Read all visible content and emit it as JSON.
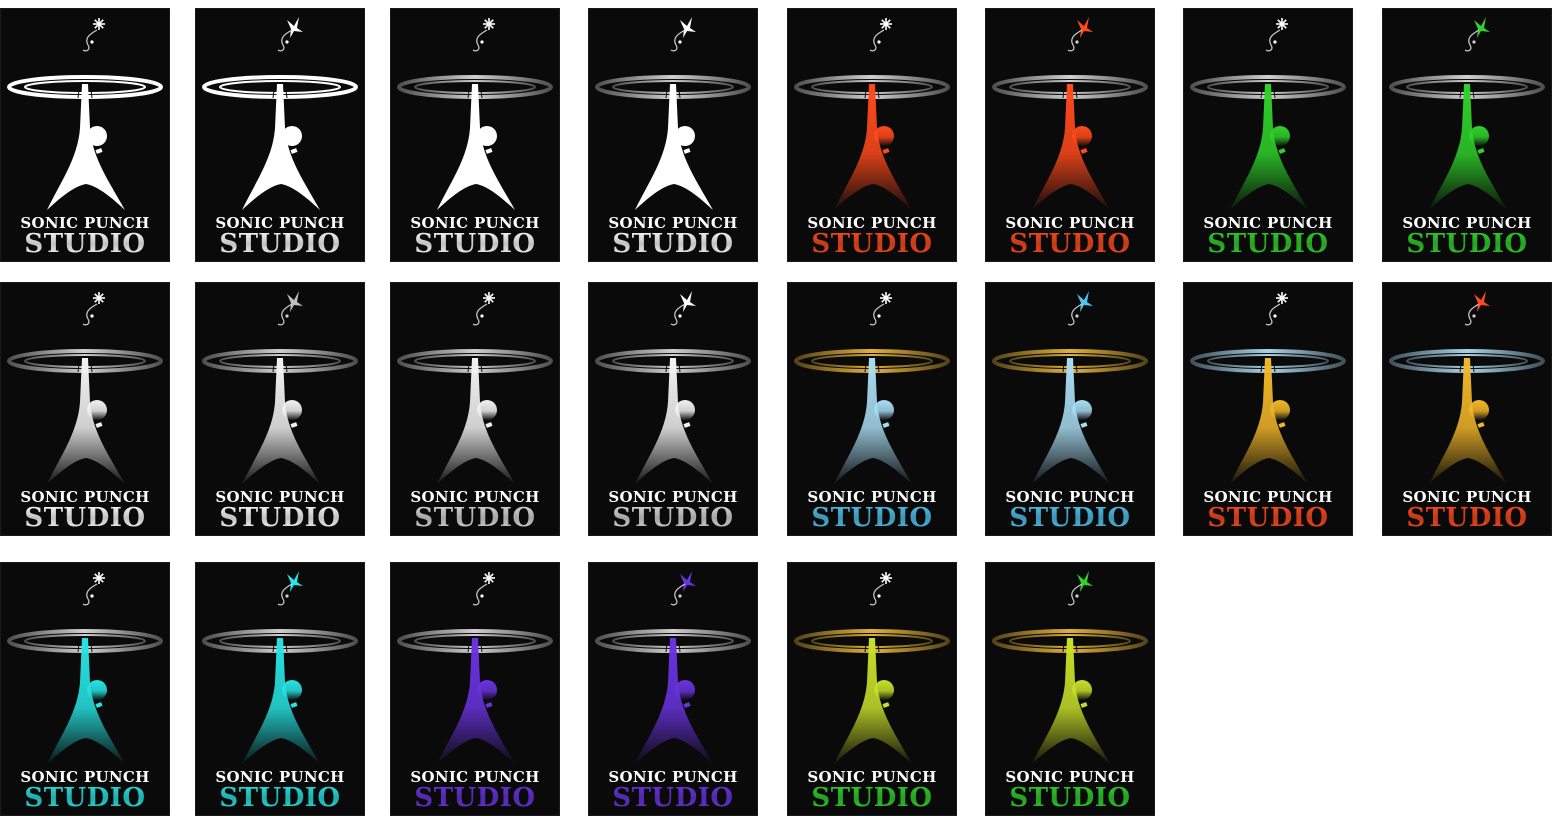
{
  "logo_text": {
    "line1": "SONIC PUNCH",
    "line2": "STUDIO"
  },
  "logos": [
    {
      "star": "#ffffff",
      "star_style": "spark",
      "ring": "#ffffff",
      "ring_solid": true,
      "figure": "#ffffff",
      "figure_grad": false,
      "text1": "#ffffff",
      "text2": "#ffffff"
    },
    {
      "star": "#ffffff",
      "star_style": "figure",
      "ring": "#ffffff",
      "ring_solid": true,
      "figure": "#ffffff",
      "figure_grad": false,
      "text1": "#ffffff",
      "text2": "#ffffff"
    },
    {
      "star": "#ffffff",
      "star_style": "spark",
      "ring": "#cfcfcf",
      "ring_solid": false,
      "figure": "#ffffff",
      "figure_grad": false,
      "text1": "#ffffff",
      "text2": "#ffffff"
    },
    {
      "star": "#ffffff",
      "star_style": "figure",
      "ring": "#cfcfcf",
      "ring_solid": false,
      "figure": "#ffffff",
      "figure_grad": false,
      "text1": "#ffffff",
      "text2": "#ffffff"
    },
    {
      "star": "#ffffff",
      "star_style": "spark",
      "ring": "#cfcfcf",
      "ring_solid": false,
      "figure": "#ff4a1c",
      "figure_grad": true,
      "text1": "#ffffff",
      "text2": "#ff4a1c"
    },
    {
      "star": "#ff4a1c",
      "star_style": "figure",
      "ring": "#cfcfcf",
      "ring_solid": false,
      "figure": "#ff4a1c",
      "figure_grad": true,
      "text1": "#ffffff",
      "text2": "#ff4a1c"
    },
    {
      "star": "#ffffff",
      "star_style": "spark",
      "ring": "#cfcfcf",
      "ring_solid": false,
      "figure": "#2fd12a",
      "figure_grad": true,
      "text1": "#ffffff",
      "text2": "#2fd12a"
    },
    {
      "star": "#2fd12a",
      "star_style": "figure",
      "ring": "#cfcfcf",
      "ring_solid": false,
      "figure": "#2fd12a",
      "figure_grad": true,
      "text1": "#ffffff",
      "text2": "#2fd12a"
    },
    {
      "star": "#ffffff",
      "star_style": "spark",
      "ring": "#cfcfcf",
      "ring_solid": false,
      "figure": "#f2f2f2",
      "figure_grad": true,
      "text1": "#ffffff",
      "text2": "#ffffff"
    },
    {
      "star": "#bdbdbd",
      "star_style": "figure",
      "ring": "#cfcfcf",
      "ring_solid": false,
      "figure": "#f2f2f2",
      "figure_grad": true,
      "text1": "#ffffff",
      "text2": "#ffffff"
    },
    {
      "star": "#ffffff",
      "star_style": "spark",
      "ring": "#cfcfcf",
      "ring_solid": false,
      "figure": "#f2f2f2",
      "figure_grad": true,
      "text1": "#ffffff",
      "text2": "#d9d9d9"
    },
    {
      "star": "#ffffff",
      "star_style": "figure",
      "ring": "#cfcfcf",
      "ring_solid": false,
      "figure": "#f2f2f2",
      "figure_grad": true,
      "text1": "#ffffff",
      "text2": "#d9d9d9"
    },
    {
      "star": "#ffffff",
      "star_style": "spark",
      "ring": "#e1b13a",
      "ring_solid": false,
      "figure": "#a9dcf2",
      "figure_grad": true,
      "text1": "#ffffff",
      "text2": "#4ec3ee"
    },
    {
      "star": "#4ec3ee",
      "star_style": "figure",
      "ring": "#e1b13a",
      "ring_solid": false,
      "figure": "#a9dcf2",
      "figure_grad": true,
      "text1": "#ffffff",
      "text2": "#4ec3ee"
    },
    {
      "star": "#ffffff",
      "star_style": "spark",
      "ring": "#a9d3e6",
      "ring_solid": false,
      "figure": "#f2b728",
      "figure_grad": true,
      "text1": "#ffffff",
      "text2": "#ff4a1c"
    },
    {
      "star": "#ff4a1c",
      "star_style": "figure",
      "ring": "#a9d3e6",
      "ring_solid": false,
      "figure": "#f2b728",
      "figure_grad": true,
      "text1": "#ffffff",
      "text2": "#ff4a1c"
    },
    {
      "star": "#ffffff",
      "star_style": "spark",
      "ring": "#cfcfcf",
      "ring_solid": false,
      "figure": "#27e3e3",
      "figure_grad": true,
      "text1": "#ffffff",
      "text2": "#27e3e3"
    },
    {
      "star": "#27e3e3",
      "star_style": "figure",
      "ring": "#cfcfcf",
      "ring_solid": false,
      "figure": "#27e3e3",
      "figure_grad": true,
      "text1": "#ffffff",
      "text2": "#27e3e3"
    },
    {
      "star": "#ffffff",
      "star_style": "spark",
      "ring": "#cfcfcf",
      "ring_solid": false,
      "figure": "#6a33e0",
      "figure_grad": true,
      "text1": "#ffffff",
      "text2": "#6a33e0"
    },
    {
      "star": "#6a33e0",
      "star_style": "figure",
      "ring": "#cfcfcf",
      "ring_solid": false,
      "figure": "#6a33e0",
      "figure_grad": true,
      "text1": "#ffffff",
      "text2": "#6a33e0"
    },
    {
      "star": "#ffffff",
      "star_style": "spark",
      "ring": "#e1b13a",
      "ring_solid": false,
      "figure": "#c8e02a",
      "figure_grad": true,
      "text1": "#ffffff",
      "text2": "#2fd12a"
    },
    {
      "star": "#2fd12a",
      "star_style": "figure",
      "ring": "#e1b13a",
      "ring_solid": false,
      "figure": "#c8e02a",
      "figure_grad": true,
      "text1": "#ffffff",
      "text2": "#2fd12a"
    }
  ]
}
